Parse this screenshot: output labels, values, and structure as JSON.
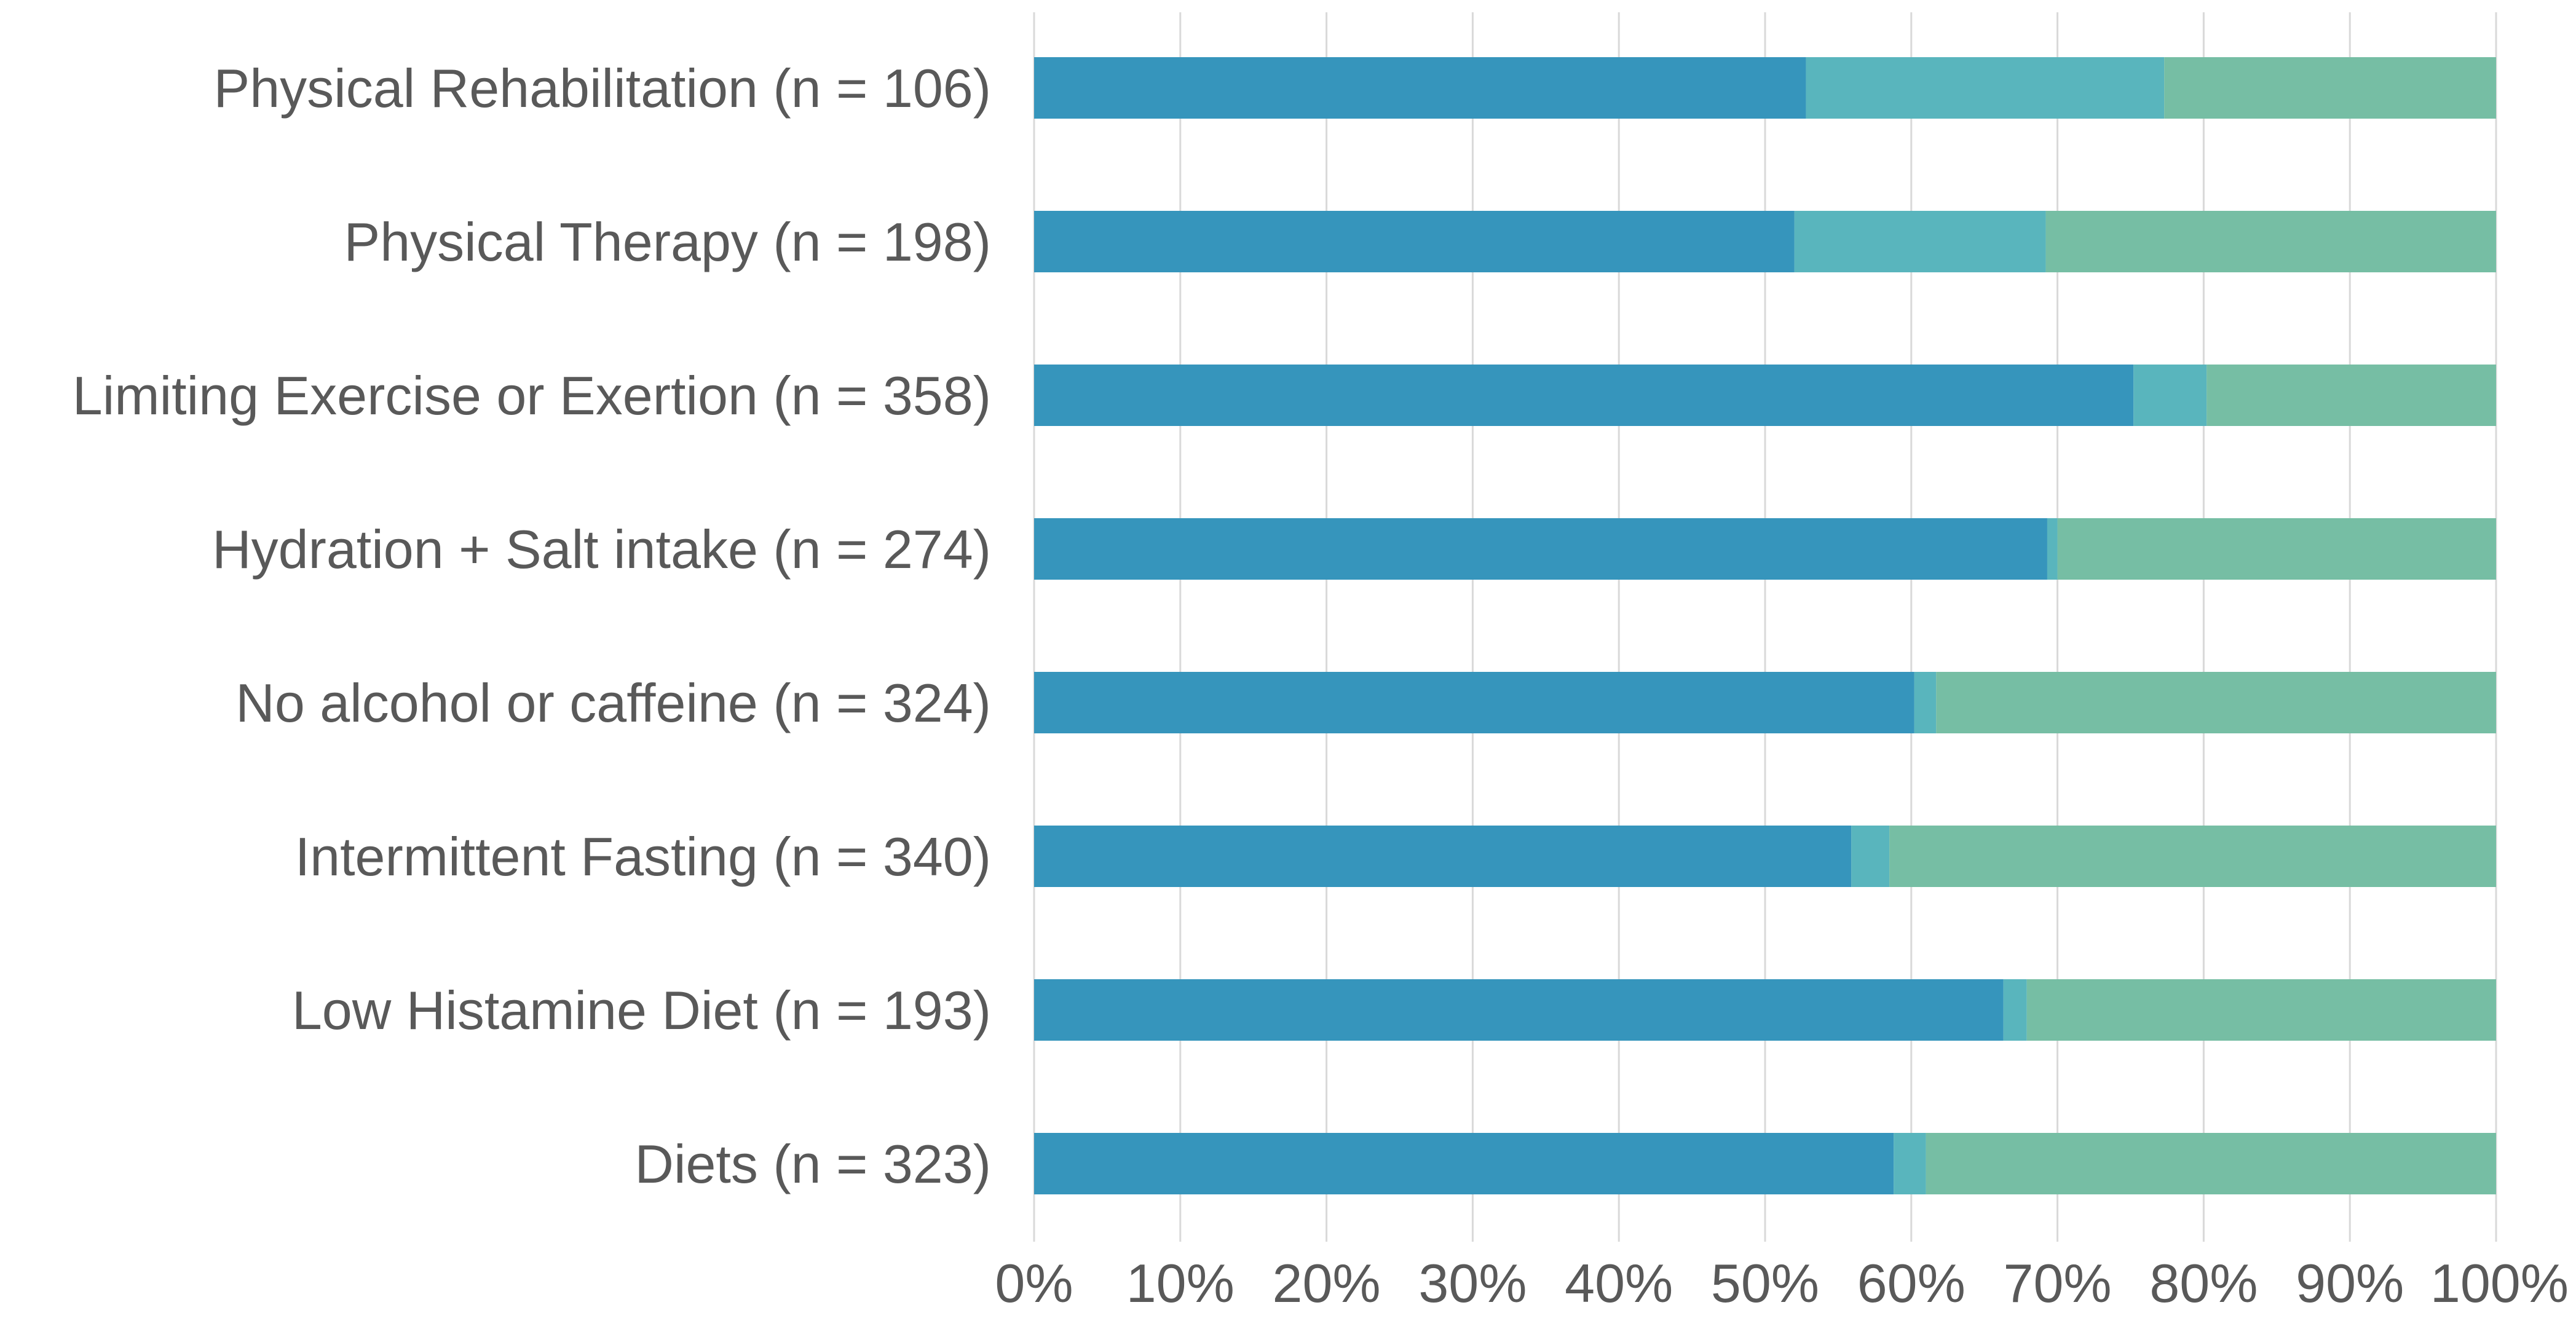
{
  "chart_data": {
    "type": "bar",
    "orientation": "horizontal",
    "stacked": "percent",
    "title": "",
    "xlabel": "",
    "ylabel": "",
    "xlim": [
      0,
      100
    ],
    "x_ticks": [
      "0%",
      "10%",
      "20%",
      "30%",
      "40%",
      "50%",
      "60%",
      "70%",
      "80%",
      "90%",
      "100%"
    ],
    "grid": "vertical",
    "legend": "none",
    "categories": [
      "Physical Rehabilitation (n = 106)",
      "Physical Therapy (n = 198)",
      "Limiting Exercise or Exertion (n = 358)",
      "Hydration + Salt intake (n = 274)",
      "No alcohol or caffeine (n = 324)",
      "Intermittent Fasting (n = 340)",
      "Low Histamine Diet (n = 193)",
      "Diets (n = 323)"
    ],
    "series": [
      {
        "color": "#3695bc",
        "values": [
          52.8,
          52.0,
          75.2,
          69.3,
          60.2,
          55.9,
          66.3,
          58.8
        ]
      },
      {
        "color": "#59b5bd",
        "values": [
          24.5,
          17.2,
          5.0,
          0.7,
          1.5,
          2.6,
          1.6,
          2.2
        ]
      },
      {
        "color": "#76bea4",
        "values": [
          22.7,
          30.8,
          19.8,
          30.0,
          38.3,
          41.5,
          32.1,
          39.0
        ]
      }
    ]
  }
}
